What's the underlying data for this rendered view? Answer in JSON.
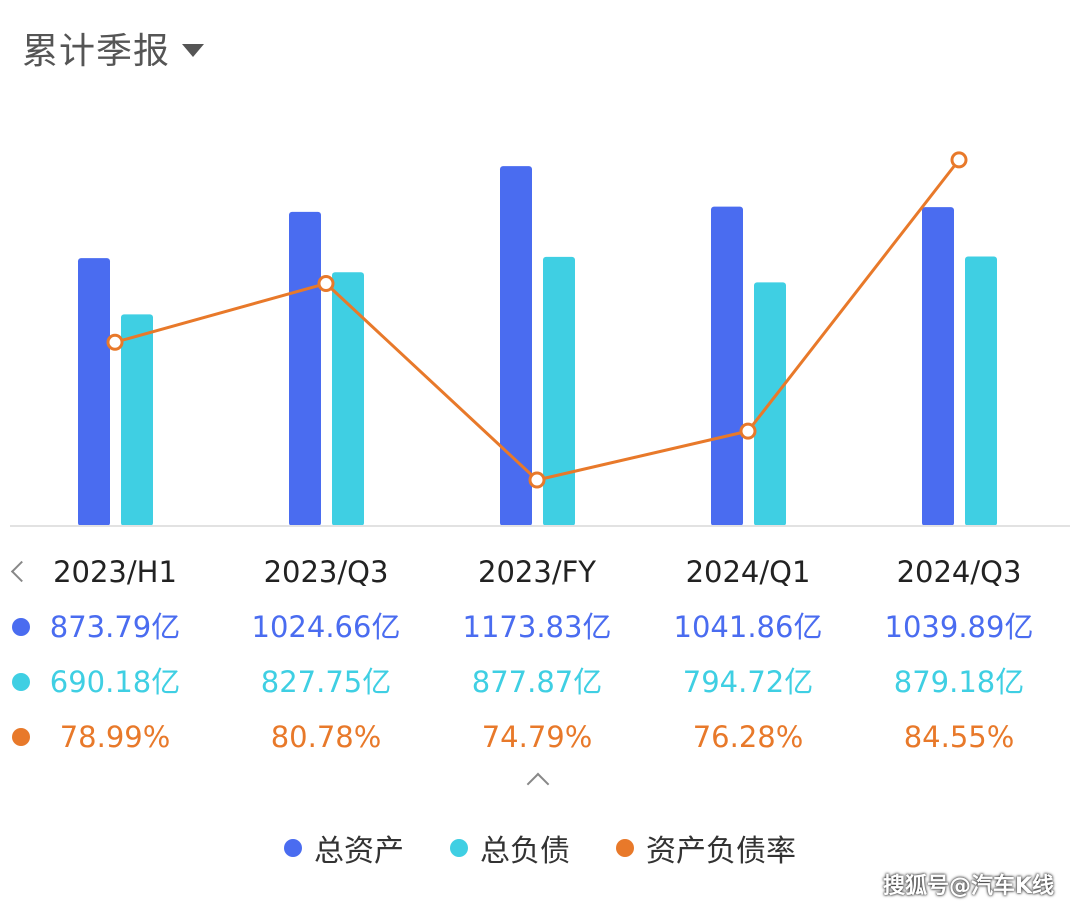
{
  "header": {
    "period_label": "累计季报"
  },
  "colors": {
    "total_assets": "#4a6cf0",
    "total_liabilities": "#3fcfe3",
    "debt_ratio": "#e8792a",
    "axis": "#e2e2e2"
  },
  "chart_data": {
    "type": "bar",
    "categories": [
      "2023/H1",
      "2023/Q3",
      "2023/FY",
      "2024/Q1",
      "2024/Q3"
    ],
    "series": [
      {
        "name": "总资产",
        "type": "bar",
        "values": [
          873.79,
          1024.66,
          1173.83,
          1041.86,
          1039.89
        ],
        "labels": [
          "873.79亿",
          "1024.66亿",
          "1173.83亿",
          "1041.86亿",
          "1039.89亿"
        ]
      },
      {
        "name": "总负债",
        "type": "bar",
        "values": [
          690.18,
          827.75,
          877.87,
          794.72,
          879.18
        ],
        "labels": [
          "690.18亿",
          "827.75亿",
          "877.87亿",
          "794.72亿",
          "879.18亿"
        ]
      },
      {
        "name": "资产负债率",
        "type": "line",
        "values": [
          78.99,
          80.78,
          74.79,
          76.28,
          84.55
        ],
        "labels": [
          "78.99%",
          "80.78%",
          "74.79%",
          "76.28%",
          "84.55%"
        ]
      }
    ],
    "xlabel": "",
    "ylabel": "",
    "grid": false,
    "legend": "bottom"
  },
  "watermark": "搜狐号@汽车K线"
}
